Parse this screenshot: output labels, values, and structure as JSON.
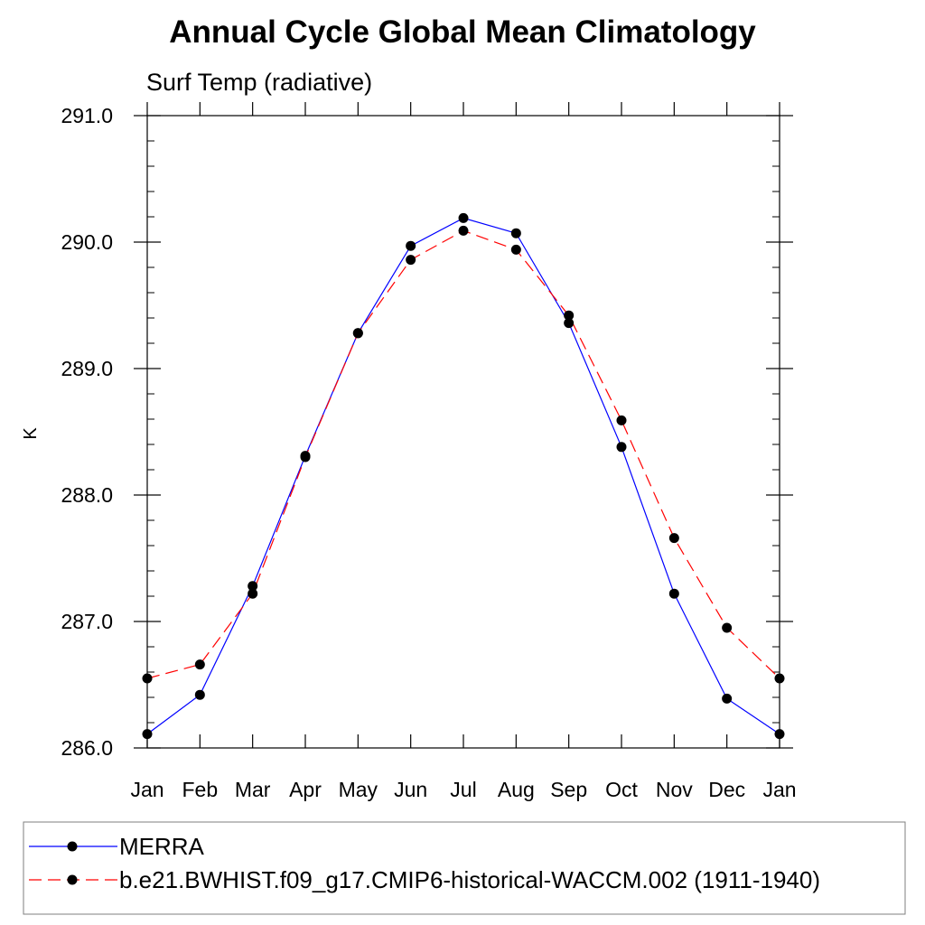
{
  "chart_data": {
    "type": "line",
    "title": "Annual Cycle Global Mean Climatology",
    "subtitle": "Surf Temp (radiative)",
    "xlabel": "",
    "ylabel": "K",
    "categories": [
      "Jan",
      "Feb",
      "Mar",
      "Apr",
      "May",
      "Jun",
      "Jul",
      "Aug",
      "Sep",
      "Oct",
      "Nov",
      "Dec",
      "Jan"
    ],
    "ylim": [
      286.0,
      291.0
    ],
    "yticks": [
      286.0,
      287.0,
      288.0,
      289.0,
      290.0,
      291.0
    ],
    "ytick_labels": [
      "286.0",
      "287.0",
      "288.0",
      "289.0",
      "290.0",
      "291.0"
    ],
    "grid": false,
    "legend_position": "bottom",
    "series": [
      {
        "name": "MERRA",
        "color": "#0000ff",
        "line_style": "solid",
        "marker": "filled-circle",
        "values": [
          286.11,
          286.42,
          287.28,
          288.31,
          289.28,
          289.97,
          290.19,
          290.07,
          289.36,
          288.38,
          287.22,
          286.39,
          286.11
        ]
      },
      {
        "name": "b.e21.BWHIST.f09_g17.CMIP6-historical-WACCM.002 (1911-1940)",
        "color": "#ff0000",
        "line_style": "dashed",
        "marker": "filled-circle",
        "values": [
          286.55,
          286.66,
          287.22,
          288.3,
          289.28,
          289.86,
          290.09,
          289.94,
          289.42,
          288.59,
          287.66,
          286.95,
          286.55
        ]
      }
    ]
  }
}
